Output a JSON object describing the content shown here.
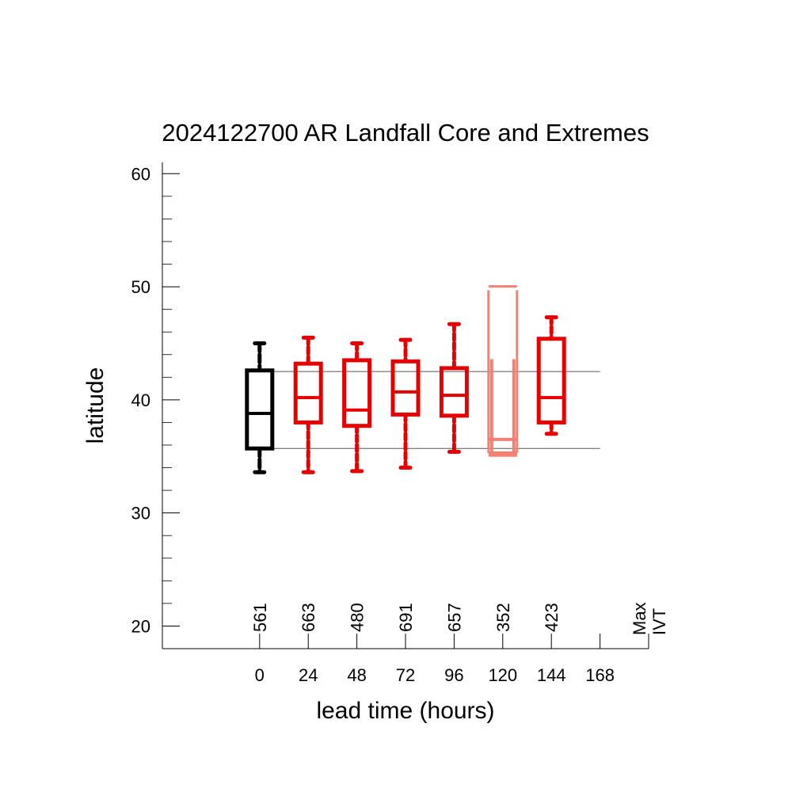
{
  "chart_data": {
    "type": "boxplot",
    "title": "2024122700 AR Landfall Core and Extremes",
    "xlabel": "lead time (hours)",
    "ylabel": "latitude",
    "xlim": [
      -48,
      192
    ],
    "ylim": [
      18,
      61
    ],
    "x_ticks": [
      0,
      24,
      48,
      72,
      96,
      120,
      144,
      168
    ],
    "y_ticks": [
      20,
      30,
      40,
      50,
      60
    ],
    "y_minor_step": 2,
    "reference_lines": [
      42.5,
      35.7
    ],
    "count_label": [
      "Max",
      "IVT"
    ],
    "colors": {
      "analysis": "#000000",
      "forecast": "#e60000",
      "low_count": "#f48074",
      "ref_line": "#555555"
    },
    "boxes": [
      {
        "lead": 0,
        "count": "561",
        "whisker_low": 33.6,
        "q1": 35.7,
        "median": 38.8,
        "q3": 42.6,
        "whisker_high": 45.0,
        "style": "analysis"
      },
      {
        "lead": 24,
        "count": "663",
        "whisker_low": 33.6,
        "q1": 38.0,
        "median": 40.2,
        "q3": 43.2,
        "whisker_high": 45.5,
        "style": "forecast"
      },
      {
        "lead": 48,
        "count": "480",
        "whisker_low": 33.7,
        "q1": 37.7,
        "median": 39.1,
        "q3": 43.5,
        "whisker_high": 45.0,
        "style": "forecast"
      },
      {
        "lead": 72,
        "count": "691",
        "whisker_low": 34.0,
        "q1": 38.7,
        "median": 40.7,
        "q3": 43.4,
        "whisker_high": 45.3,
        "style": "forecast"
      },
      {
        "lead": 96,
        "count": "657",
        "whisker_low": 35.4,
        "q1": 38.6,
        "median": 40.4,
        "q3": 42.8,
        "whisker_high": 46.7,
        "style": "forecast"
      },
      {
        "lead": 120,
        "count": "352",
        "whisker_low": 35.0,
        "q1": 35.3,
        "median": 36.5,
        "q3": 49.7,
        "whisker_high": 50.1,
        "style": "low_count"
      },
      {
        "lead": 144,
        "count": "423",
        "whisker_low": 37.0,
        "q1": 38.0,
        "median": 40.2,
        "q3": 45.4,
        "whisker_high": 47.3,
        "style": "forecast"
      }
    ]
  }
}
